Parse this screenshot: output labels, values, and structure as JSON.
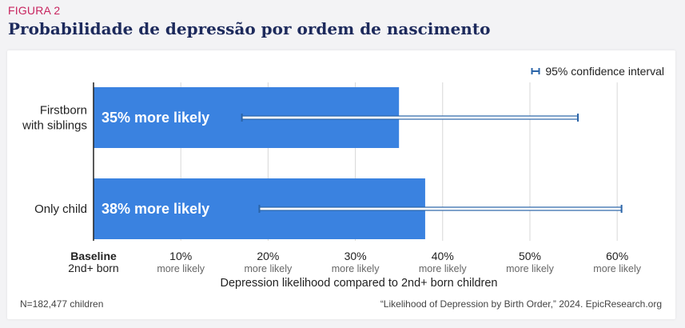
{
  "figure_label": "FIGURA 2",
  "title": "Probabilidade de depressão por ordem de nascimento",
  "legend_label": "95% confidence interval",
  "footer": {
    "sample": "N=182,477 children",
    "source": "“Likelihood of Depression by Birth Order,” 2024. EpicResearch.org"
  },
  "colors": {
    "bar": "#3a82e0",
    "error_bar": "#2a64a8",
    "grid": "#d8d8d8",
    "title": "#1d2a5c",
    "label": "#c8255f"
  },
  "chart_data": {
    "type": "bar",
    "orientation": "horizontal",
    "categories": [
      {
        "lines": [
          "Firstborn",
          "with siblings"
        ]
      },
      {
        "lines": [
          "Only child"
        ]
      }
    ],
    "values": [
      35,
      38
    ],
    "bar_labels": [
      "35% more likely",
      "38% more likely"
    ],
    "ci_low": [
      17,
      19
    ],
    "ci_high": [
      55.5,
      60.5
    ],
    "xlim": [
      0,
      62
    ],
    "ticks": [
      {
        "value": 0,
        "label": "Baseline",
        "sublabel": "2nd+ born",
        "bold": true
      },
      {
        "value": 10,
        "label": "10%",
        "sublabel": "more likely"
      },
      {
        "value": 20,
        "label": "20%",
        "sublabel": "more likely"
      },
      {
        "value": 30,
        "label": "30%",
        "sublabel": "more likely"
      },
      {
        "value": 40,
        "label": "40%",
        "sublabel": "more likely"
      },
      {
        "value": 50,
        "label": "50%",
        "sublabel": "more likely"
      },
      {
        "value": 60,
        "label": "60%",
        "sublabel": "more likely"
      }
    ],
    "xlabel": "Depression likelihood compared to 2nd+ born children",
    "grid": true,
    "legend_position": "top-right"
  }
}
